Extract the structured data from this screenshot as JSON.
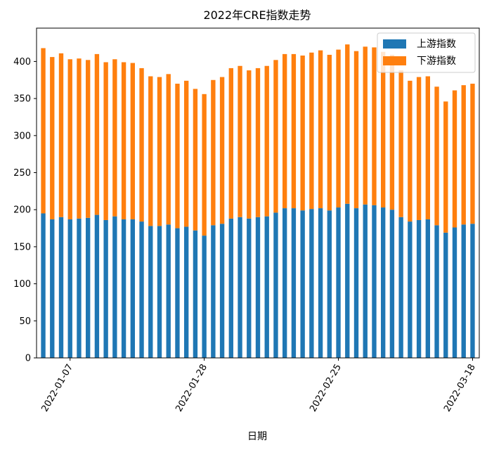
{
  "chart_data": {
    "type": "bar",
    "stacked": true,
    "title": "2022年CRE指数走势",
    "xlabel": "日期",
    "ylabel": "",
    "ylim": [
      0,
      445
    ],
    "yticks": [
      0,
      50,
      100,
      150,
      200,
      250,
      300,
      350,
      400
    ],
    "legend_position": "top-right",
    "colors": {
      "upstream": "#1f77b4",
      "downstream": "#ff7f0e"
    },
    "xtick_labels": [
      {
        "index": 3,
        "label": "2022-01-07"
      },
      {
        "index": 18,
        "label": "2022-01-28"
      },
      {
        "index": 33,
        "label": "2022-02-25"
      },
      {
        "index": 48,
        "label": "2022-03-18"
      }
    ],
    "series": [
      {
        "name": "上游指数",
        "values": [
          195,
          187,
          190,
          187,
          188,
          189,
          193,
          186,
          191,
          187,
          187,
          184,
          178,
          178,
          180,
          175,
          177,
          172,
          165,
          179,
          181,
          188,
          190,
          188,
          190,
          191,
          196,
          202,
          202,
          199,
          201,
          202,
          199,
          203,
          208,
          202,
          207,
          206,
          203,
          200,
          190,
          184,
          186,
          187,
          179,
          169,
          176,
          180,
          181
        ]
      },
      {
        "name": "下游指数",
        "values": [
          223,
          219,
          221,
          216,
          216,
          213,
          217,
          213,
          212,
          212,
          211,
          207,
          202,
          201,
          203,
          195,
          197,
          191,
          191,
          196,
          198,
          203,
          204,
          200,
          201,
          203,
          206,
          208,
          208,
          209,
          211,
          213,
          210,
          213,
          215,
          212,
          213,
          213,
          210,
          209,
          198,
          190,
          193,
          193,
          187,
          177,
          185,
          188,
          189
        ]
      }
    ]
  }
}
